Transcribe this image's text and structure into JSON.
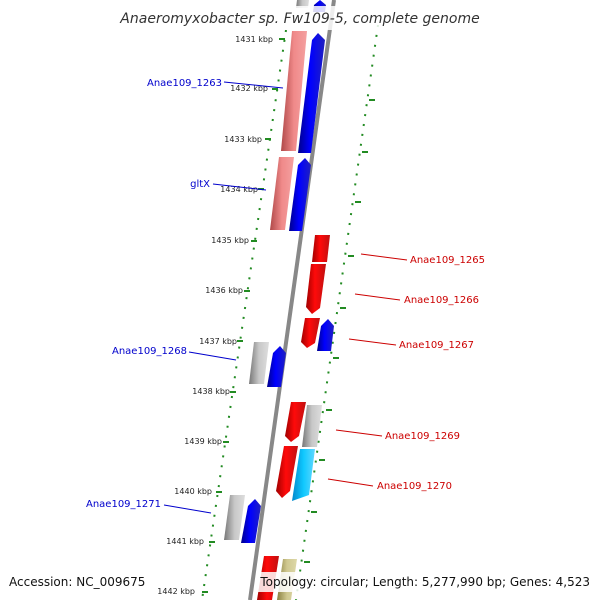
{
  "title": "Anaeromyxobacter sp. Fw109-5, complete genome",
  "footer": {
    "accession": "Accession: NC_009675",
    "summary": "Topology: circular; Length: 5,277,990 bp; Genes: 4,523"
  },
  "ticks": [
    "1431 kbp",
    "1432 kbp",
    "1433 kbp",
    "1434 kbp",
    "1435 kbp",
    "1436 kbp",
    "1437 kbp",
    "1438 kbp",
    "1439 kbp",
    "1440 kbp",
    "1441 kbp",
    "1442 kbp"
  ],
  "gene_labels": [
    {
      "name": "Anae109_1263",
      "side": "left",
      "color": "#0000cc"
    },
    {
      "name": "gltX",
      "side": "left",
      "color": "#0000cc"
    },
    {
      "name": "Anae109_1265",
      "side": "right",
      "color": "#cc0000"
    },
    {
      "name": "Anae109_1266",
      "side": "right",
      "color": "#cc0000"
    },
    {
      "name": "Anae109_1267",
      "side": "right",
      "color": "#cc0000"
    },
    {
      "name": "Anae109_1268",
      "side": "left",
      "color": "#0000cc"
    },
    {
      "name": "Anae109_1269",
      "side": "right",
      "color": "#cc0000"
    },
    {
      "name": "Anae109_1270",
      "side": "right",
      "color": "#cc0000"
    },
    {
      "name": "Anae109_1271",
      "side": "left",
      "color": "#0000cc"
    }
  ],
  "colors": {
    "backbone": "#888888",
    "dots": "#228b22",
    "forward_cds": "#0000ff",
    "reverse_cds": "#ff0000",
    "gene_light": "#f08080",
    "gene_grey": "#aaaaaa",
    "cyan": "#00bfff",
    "olive": "#bdb76b"
  }
}
